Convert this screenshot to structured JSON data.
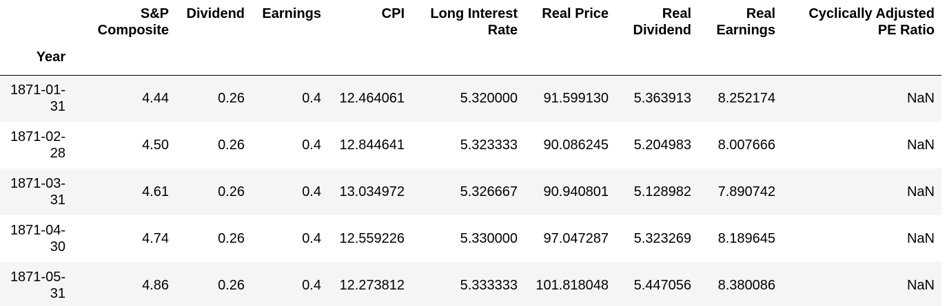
{
  "table": {
    "index_name": "Year",
    "columns": [
      "S&P Composite",
      "Dividend",
      "Earnings",
      "CPI",
      "Long Interest Rate",
      "Real Price",
      "Real Dividend",
      "Real Earnings",
      "Cyclically Adjusted PE Ratio"
    ],
    "column_lines": [
      [
        "S&P",
        "Composite"
      ],
      [
        "Dividend"
      ],
      [
        "Earnings"
      ],
      [
        "CPI"
      ],
      [
        "Long Interest",
        "Rate"
      ],
      [
        "Real Price"
      ],
      [
        "Real",
        "Dividend"
      ],
      [
        "Real",
        "Earnings"
      ],
      [
        "Cyclically Adjusted",
        "PE Ratio"
      ]
    ],
    "rows": [
      {
        "index": [
          "1871-01-",
          "31"
        ],
        "values": [
          "4.44",
          "0.26",
          "0.4",
          "12.464061",
          "5.320000",
          "91.599130",
          "5.363913",
          "8.252174",
          "NaN"
        ]
      },
      {
        "index": [
          "1871-02-",
          "28"
        ],
        "values": [
          "4.50",
          "0.26",
          "0.4",
          "12.844641",
          "5.323333",
          "90.086245",
          "5.204983",
          "8.007666",
          "NaN"
        ]
      },
      {
        "index": [
          "1871-03-",
          "31"
        ],
        "values": [
          "4.61",
          "0.26",
          "0.4",
          "13.034972",
          "5.326667",
          "90.940801",
          "5.128982",
          "7.890742",
          "NaN"
        ]
      },
      {
        "index": [
          "1871-04-",
          "30"
        ],
        "values": [
          "4.74",
          "0.26",
          "0.4",
          "12.559226",
          "5.330000",
          "97.047287",
          "5.323269",
          "8.189645",
          "NaN"
        ]
      },
      {
        "index": [
          "1871-05-",
          "31"
        ],
        "values": [
          "4.86",
          "0.26",
          "0.4",
          "12.273812",
          "5.333333",
          "101.818048",
          "5.447056",
          "8.380086",
          "NaN"
        ]
      }
    ]
  },
  "colors": {
    "odd_row_bg": "#f5f5f5",
    "even_row_bg": "#ffffff",
    "text": "#000000",
    "header_rule": "#000000"
  }
}
